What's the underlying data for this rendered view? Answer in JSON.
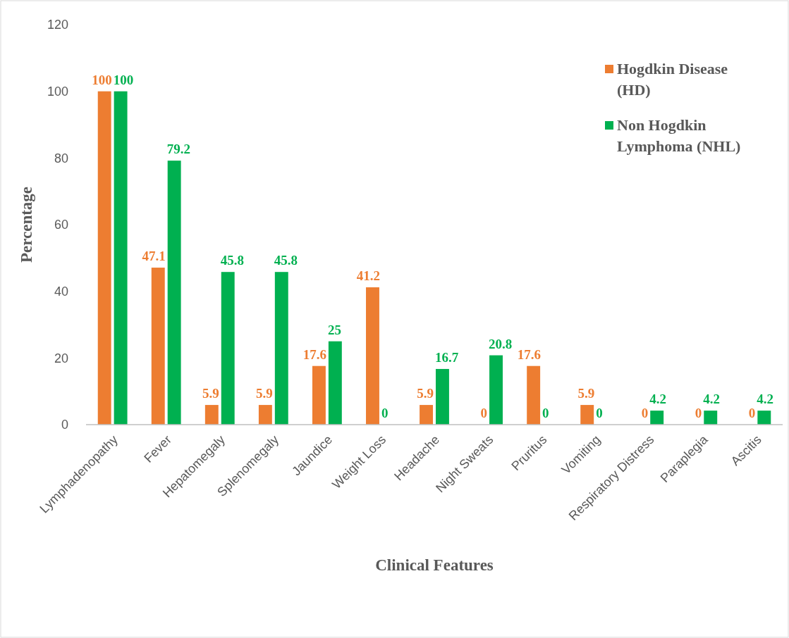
{
  "chart_data": {
    "type": "bar",
    "xlabel": "Clinical Features",
    "ylabel": "Percentage",
    "categories": [
      "Lymphadenopathy",
      "Fever",
      "Hepatomegaly",
      "Splenomegaly",
      "Jaundice",
      "Weight Loss",
      "Headache",
      "Night Sweats",
      "Pruritus",
      "Vomiting",
      "Respiratory Distress",
      "Paraplegia",
      "Ascitis"
    ],
    "series": [
      {
        "name": "Hogdkin Disease (HD)",
        "color": "#ed7d31",
        "values": [
          100,
          47.1,
          5.9,
          5.9,
          17.6,
          41.2,
          5.9,
          0,
          17.6,
          5.9,
          0,
          0,
          0
        ]
      },
      {
        "name": "Non Hogdkin Lymphoma (NHL)",
        "color": "#00b050",
        "values": [
          100,
          79.2,
          45.8,
          45.8,
          25,
          0,
          16.7,
          20.8,
          0,
          0,
          4.2,
          4.2,
          4.2
        ]
      }
    ],
    "ylim": [
      0,
      120
    ],
    "yticks": [
      0,
      20,
      40,
      60,
      80,
      100,
      120
    ],
    "grid": false,
    "legend": "top right",
    "data_labels": true
  }
}
